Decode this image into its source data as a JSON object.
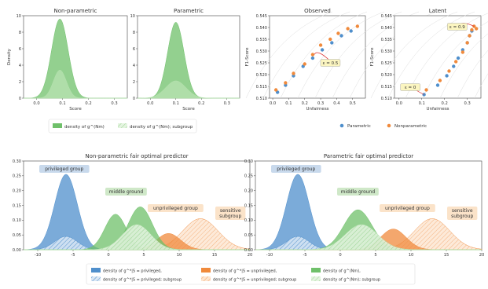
{
  "colors": {
    "blue": "#4f8fcc",
    "orange": "#f08a3c",
    "green": "#6fc06a",
    "light_green": "#b8e3b1",
    "label_bg_blue": "#c8d9ec",
    "label_bg_green": "#cfe8c8",
    "label_bg_orange": "#fbe3c9",
    "marker_callout": "#fbf5c0"
  },
  "chart_data": [
    {
      "id": "nonparam",
      "type": "area",
      "title": "Non-parametric",
      "xlabel": "Score",
      "ylabel": "Density",
      "xlim": [
        -0.05,
        0.35
      ],
      "ylim": [
        0,
        10
      ],
      "xticks": [
        "0.0",
        "0.1",
        "0.2",
        "0.3"
      ],
      "yticks": [
        "0",
        "2",
        "4",
        "6",
        "8",
        "10"
      ],
      "series": [
        {
          "mu": 0.09,
          "sigma": 0.032,
          "peak": 9.6,
          "color": "green"
        },
        {
          "mu": 0.09,
          "sigma": 0.025,
          "peak": 3.4,
          "color": "light_green"
        }
      ]
    },
    {
      "id": "param",
      "type": "area",
      "title": "Parametric",
      "xlabel": "Score",
      "ylabel": "",
      "xlim": [
        -0.05,
        0.35
      ],
      "ylim": [
        0,
        10
      ],
      "xticks": [
        "0.0",
        "0.1",
        "0.2",
        "0.3"
      ],
      "yticks": [
        "0",
        "2",
        "4",
        "6",
        "8",
        "10"
      ],
      "series": [
        {
          "mu": 0.1,
          "sigma": 0.032,
          "peak": 9.2,
          "color": "green"
        },
        {
          "mu": 0.1,
          "sigma": 0.04,
          "peak": 2.1,
          "color": "light_green"
        }
      ]
    },
    {
      "id": "observed",
      "type": "scatter",
      "title": "Observed",
      "xlabel": "Unfairness",
      "ylabel": "F1-Score",
      "xlim": [
        -0.02,
        0.58
      ],
      "ylim": [
        0.51,
        0.545
      ],
      "xticks": [
        "0.0",
        "0.1",
        "0.2",
        "0.3",
        "0.4",
        "0.5"
      ],
      "yticks": [
        "0.510",
        "0.515",
        "0.520",
        "0.525",
        "0.530",
        "0.535",
        "0.540",
        "0.545"
      ],
      "parametric": [
        [
          0.03,
          0.5125
        ],
        [
          0.08,
          0.5155
        ],
        [
          0.13,
          0.5195
        ],
        [
          0.19,
          0.5235
        ],
        [
          0.25,
          0.527
        ],
        [
          0.31,
          0.5305
        ],
        [
          0.37,
          0.5335
        ],
        [
          0.43,
          0.5365
        ],
        [
          0.49,
          0.5385
        ]
      ],
      "nonparametric": [
        [
          0.02,
          0.5135
        ],
        [
          0.08,
          0.5165
        ],
        [
          0.13,
          0.5205
        ],
        [
          0.2,
          0.5245
        ],
        [
          0.25,
          0.5285
        ],
        [
          0.3,
          0.5325
        ],
        [
          0.36,
          0.535
        ],
        [
          0.41,
          0.5375
        ],
        [
          0.47,
          0.5395
        ],
        [
          0.53,
          0.5405
        ]
      ],
      "annotation": {
        "text": "ε = 0.5",
        "at": [
          0.26,
          0.5285
        ]
      }
    },
    {
      "id": "latent",
      "type": "scatter",
      "title": "Latent",
      "xlabel": "Unfairness",
      "ylabel": "F1-Score",
      "xlim": [
        -0.02,
        0.36
      ],
      "ylim": [
        0.51,
        0.545
      ],
      "xticks": [
        "0.0",
        "0.1",
        "0.2",
        "0.3"
      ],
      "yticks": [
        "0.510",
        "0.515",
        "0.520",
        "0.525",
        "0.530",
        "0.535",
        "0.540",
        "0.545"
      ],
      "parametric": [
        [
          0.11,
          0.5115
        ],
        [
          0.17,
          0.5155
        ],
        [
          0.21,
          0.5195
        ],
        [
          0.24,
          0.5235
        ],
        [
          0.26,
          0.527
        ],
        [
          0.28,
          0.5305
        ],
        [
          0.3,
          0.5335
        ],
        [
          0.31,
          0.5365
        ],
        [
          0.32,
          0.5385
        ]
      ],
      "nonparametric": [
        [
          0.12,
          0.5135
        ],
        [
          0.18,
          0.5175
        ],
        [
          0.22,
          0.5215
        ],
        [
          0.25,
          0.5255
        ],
        [
          0.28,
          0.5295
        ],
        [
          0.3,
          0.5335
        ],
        [
          0.31,
          0.5365
        ],
        [
          0.32,
          0.539
        ],
        [
          0.33,
          0.5405
        ],
        [
          0.34,
          0.5395
        ]
      ],
      "annotations": [
        {
          "text": "ε = 0",
          "at": [
            0.11,
            0.5115
          ]
        },
        {
          "text": "ε = 0.9",
          "at": [
            0.33,
            0.5405
          ]
        }
      ]
    },
    {
      "id": "np_fair",
      "type": "area",
      "title": "Non-parametric fair optimal predictor",
      "xlim": [
        -12,
        20
      ],
      "ylim": [
        0,
        0.3
      ],
      "xticks": [
        "-10",
        "-5",
        "0",
        "5",
        "10",
        "15",
        "20"
      ],
      "yticks": [
        "0.00",
        "0.05",
        "0.10",
        "0.15",
        "0.20",
        "0.25",
        "0.30"
      ],
      "series": [
        {
          "mu": -6,
          "sigma": 1.6,
          "peak": 0.255,
          "color": "blue",
          "hatch": false
        },
        {
          "mu": -6,
          "sigma": 1.6,
          "peak": 0.045,
          "color": "blue",
          "hatch": true
        },
        {
          "mu": 13,
          "sigma": 2.5,
          "peak": 0.105,
          "color": "orange",
          "hatch": true
        },
        {
          "mu": 8.5,
          "sigma": 1.7,
          "peak": 0.055,
          "color": "orange",
          "hatch": false
        },
        {
          "mu": 1,
          "sigma": 1.5,
          "peak": 0.12,
          "color": "green",
          "hatch": false
        },
        {
          "mu": 4.5,
          "sigma": 1.7,
          "peak": 0.145,
          "color": "green",
          "hatch": false
        },
        {
          "mu": 4,
          "sigma": 2.0,
          "peak": 0.085,
          "color": "light_green",
          "hatch": true
        }
      ]
    },
    {
      "id": "p_fair",
      "type": "area",
      "title": "Parametric fair optimal predictor",
      "xlim": [
        -12,
        20
      ],
      "ylim": [
        0,
        0.3
      ],
      "xticks": [
        "-10",
        "-5",
        "0",
        "5",
        "10",
        "15",
        "20"
      ],
      "yticks": [
        "0.00",
        "0.05",
        "0.10",
        "0.15",
        "0.20",
        "0.25",
        "0.30"
      ],
      "series": [
        {
          "mu": -6,
          "sigma": 1.6,
          "peak": 0.255,
          "color": "blue",
          "hatch": false
        },
        {
          "mu": -6,
          "sigma": 1.6,
          "peak": 0.045,
          "color": "blue",
          "hatch": true
        },
        {
          "mu": 13,
          "sigma": 2.5,
          "peak": 0.105,
          "color": "orange",
          "hatch": true
        },
        {
          "mu": 7.5,
          "sigma": 1.8,
          "peak": 0.07,
          "color": "orange",
          "hatch": false
        },
        {
          "mu": 2.5,
          "sigma": 2.0,
          "peak": 0.135,
          "color": "green",
          "hatch": false
        },
        {
          "mu": 3,
          "sigma": 2.3,
          "peak": 0.085,
          "color": "light_green",
          "hatch": true
        }
      ]
    }
  ],
  "group_labels": {
    "privileged": "privileged group",
    "middle": "middle ground",
    "unprivileged": "unprivileged group",
    "sensitive": "sensitive subgroup"
  },
  "legend_top": {
    "density_full": "density of g^(Nm)",
    "density_sub": "density of g^(Nm); subgroup"
  },
  "legend_scatter": {
    "parametric": "Parametric",
    "nonparametric": "Nonparametric"
  },
  "legend_bottom": [
    {
      "label": "density of g^*|S = privileged,",
      "color": "blue",
      "hatch": false
    },
    {
      "label": "density of g^*|S = privileged; subgroup",
      "color": "blue",
      "hatch": true
    },
    {
      "label": "density of g^*|S = unprivileged,",
      "color": "orange",
      "hatch": false
    },
    {
      "label": "density of g^*|S = unprivileged; subgroup",
      "color": "orange",
      "hatch": true
    },
    {
      "label": "density of g^(Nm),",
      "color": "green",
      "hatch": false
    },
    {
      "label": "density of g^(Nm); subgroup",
      "color": "light_green",
      "hatch": true
    }
  ]
}
